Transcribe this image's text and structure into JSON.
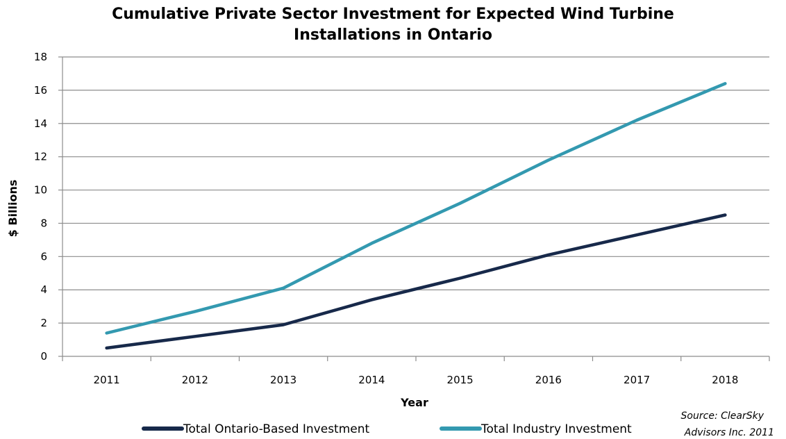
{
  "chart_data": {
    "type": "line",
    "title_line1": "Cumulative Private Sector Investment for Expected Wind Turbine",
    "title_line2": "Installations in Ontario",
    "xlabel": "Year",
    "ylabel": "$ Billions",
    "ylim": [
      0,
      18
    ],
    "yticks": [
      0,
      2,
      4,
      6,
      8,
      10,
      12,
      14,
      16,
      18
    ],
    "categories": [
      "2011",
      "2012",
      "2013",
      "2014",
      "2015",
      "2016",
      "2017",
      "2018"
    ],
    "grid": true,
    "legend_position": "bottom",
    "series": [
      {
        "name": "Total Ontario-Based Investment",
        "color": "#17294a",
        "values": [
          0.5,
          1.2,
          1.9,
          3.4,
          4.7,
          6.1,
          7.3,
          8.5
        ]
      },
      {
        "name": "Total Industry Investment",
        "color": "#3399b0",
        "values": [
          1.4,
          2.7,
          4.1,
          6.8,
          9.2,
          11.8,
          14.2,
          16.4
        ]
      }
    ],
    "source_line1": "Source: ClearSky",
    "source_line2": "Advisors Inc. 2011"
  }
}
